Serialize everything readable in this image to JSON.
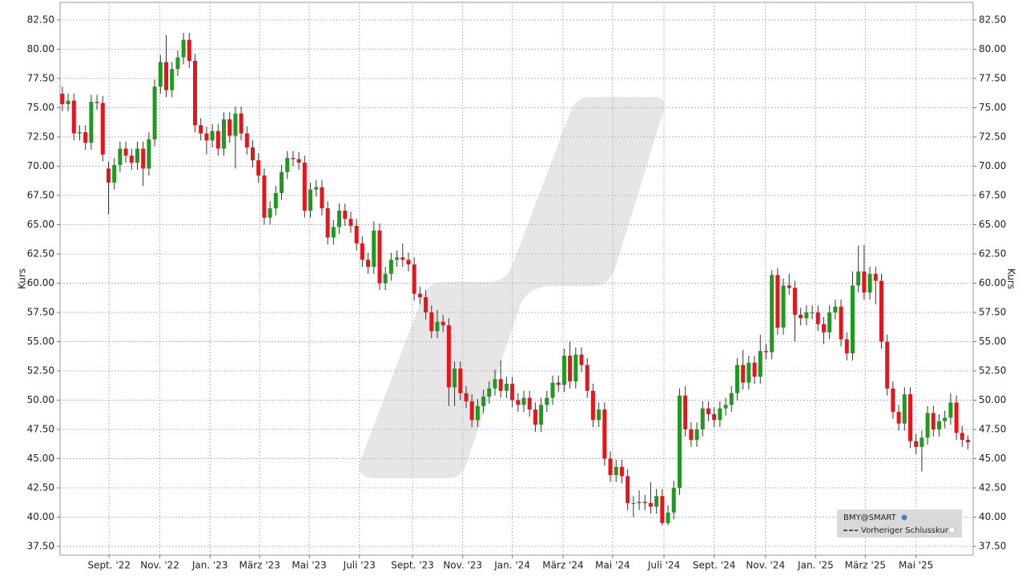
{
  "chart_data": {
    "type": "candlestick",
    "ylabel": "Kurs",
    "up_color": "#1e9b1e",
    "down_color": "#e8141c",
    "grid": true,
    "legend": {
      "corner": "bottom-right",
      "items": [
        "Vorheriger Schlusskurs"
      ]
    },
    "xlim": [
      -0.4,
      157.9
    ],
    "ylim": [
      36.75,
      84.0
    ],
    "xticks": [
      {
        "value": 8.1,
        "label": "Sept. '22"
      },
      {
        "value": 16.9,
        "label": "Nov. '22"
      },
      {
        "value": 25.6,
        "label": "Jan. '23"
      },
      {
        "value": 34.2,
        "label": "März '23"
      },
      {
        "value": 42.8,
        "label": "Mai '23"
      },
      {
        "value": 51.5,
        "label": "Juli '23"
      },
      {
        "value": 60.7,
        "label": "Sept. '23"
      },
      {
        "value": 69.4,
        "label": "Nov. '23"
      },
      {
        "value": 78.0,
        "label": "Jan. '24"
      },
      {
        "value": 86.8,
        "label": "März '24"
      },
      {
        "value": 95.4,
        "label": "Mai '24"
      },
      {
        "value": 104.3,
        "label": "Juli '24"
      },
      {
        "value": 113.0,
        "label": "Sept. '24"
      },
      {
        "value": 121.9,
        "label": "Nov. '24"
      },
      {
        "value": 130.6,
        "label": "Jan. '25"
      },
      {
        "value": 139.2,
        "label": "März '25"
      },
      {
        "value": 148.0,
        "label": "Mai '25"
      }
    ],
    "yticks": [
      {
        "value": 37.5,
        "label": "37.50"
      },
      {
        "value": 40,
        "label": "40.00"
      },
      {
        "value": 42.5,
        "label": "42.50"
      },
      {
        "value": 45,
        "label": "45.00"
      },
      {
        "value": 47.5,
        "label": "47.50"
      },
      {
        "value": 50,
        "label": "50.00"
      },
      {
        "value": 52.5,
        "label": "52.50"
      },
      {
        "value": 55,
        "label": "55.00"
      },
      {
        "value": 57.5,
        "label": "57.50"
      },
      {
        "value": 60,
        "label": "60.00"
      },
      {
        "value": 62.5,
        "label": "62.50"
      },
      {
        "value": 65,
        "label": "65.00"
      },
      {
        "value": 67.5,
        "label": "67.50"
      },
      {
        "value": 70,
        "label": "70.00"
      },
      {
        "value": 72.5,
        "label": "72.50"
      },
      {
        "value": 75,
        "label": "75.00"
      },
      {
        "value": 77.5,
        "label": "77.50"
      },
      {
        "value": 80,
        "label": "80.00"
      },
      {
        "value": 82.5,
        "label": "82.50"
      }
    ],
    "series": [
      {
        "name": "BMY@SMART",
        "open": [
          76.2,
          75.3,
          75.6,
          72.8,
          72.9,
          72.0,
          75.5,
          75.4,
          69.8,
          68.6,
          70.1,
          71.5,
          70.9,
          70.3,
          71.5,
          69.8,
          72.3,
          76.8,
          78.9,
          76.5,
          78.3,
          79.3,
          80.8,
          79.0,
          73.5,
          72.8,
          72.2,
          73.0,
          71.5,
          74.0,
          72.6,
          74.5,
          72.8,
          71.6,
          70.5,
          69.2,
          65.6,
          66.4,
          67.7,
          69.5,
          70.7,
          70.6,
          70.3,
          66.2,
          68.0,
          68.2,
          66.4,
          63.9,
          64.8,
          66.2,
          65.5,
          64.9,
          63.4,
          62.0,
          61.4,
          64.5,
          60.0,
          60.8,
          62.0,
          62.2,
          62.0,
          61.6,
          59.1,
          58.8,
          57.5,
          55.9,
          56.7,
          56.4,
          51.1,
          52.7,
          50.6,
          49.9,
          48.3,
          49.5,
          50.3,
          51.0,
          51.8,
          50.8,
          51.4,
          50.0,
          49.6,
          50.2,
          49.2,
          47.9,
          49.6,
          50.2,
          51.5,
          51.3,
          53.8,
          51.6,
          53.9,
          53.0,
          50.8,
          48.3,
          49.2,
          45.0,
          43.6,
          44.3,
          43.5,
          41.2,
          41.2,
          41.3,
          41.2,
          40.9,
          41.8,
          39.5,
          40.4,
          42.5,
          50.4,
          47.5,
          46.6,
          47.5,
          49.3,
          48.8,
          48.3,
          49.3,
          49.6,
          50.6,
          53.0,
          51.5,
          53.2,
          52.0,
          54.2,
          54.1,
          60.7,
          56.2,
          59.8,
          59.6,
          57.3,
          57.0,
          57.5,
          57.5,
          56.5,
          55.8,
          57.5,
          58.0,
          55.2,
          54.0,
          59.8,
          61.0,
          59.2,
          60.8,
          60.2,
          55.0,
          51.0,
          49.0,
          48.0,
          50.5,
          46.5,
          46.0,
          46.8,
          48.9,
          47.5,
          48.2,
          48.5,
          49.8,
          47.2,
          46.6
        ],
        "high": [
          76.8,
          76.2,
          76.2,
          73.5,
          73.5,
          76.1,
          76.1,
          76.0,
          70.4,
          70.7,
          72.1,
          72.1,
          71.5,
          72.1,
          72.1,
          72.9,
          77.4,
          79.5,
          81.2,
          78.9,
          79.9,
          81.4,
          81.4,
          79.6,
          74.1,
          73.4,
          73.6,
          73.6,
          74.6,
          74.6,
          75.1,
          75.1,
          73.4,
          72.2,
          71.1,
          69.8,
          67.0,
          68.3,
          70.1,
          71.3,
          71.3,
          71.2,
          70.9,
          68.6,
          68.8,
          68.8,
          67.0,
          65.4,
          66.8,
          66.8,
          66.1,
          65.5,
          64.0,
          62.6,
          65.3,
          65.1,
          61.4,
          62.6,
          62.8,
          63.4,
          62.6,
          62.2,
          59.7,
          59.4,
          58.1,
          57.7,
          57.3,
          57.0,
          53.3,
          53.3,
          51.2,
          50.5,
          50.1,
          50.9,
          51.6,
          52.6,
          53.4,
          52.0,
          52.0,
          50.6,
          50.8,
          50.8,
          49.8,
          50.2,
          50.8,
          52.1,
          52.1,
          54.4,
          55.0,
          54.5,
          54.5,
          53.6,
          51.4,
          49.8,
          49.8,
          45.6,
          44.9,
          44.9,
          44.1,
          41.8,
          42.3,
          41.9,
          43.0,
          42.4,
          42.4,
          41.0,
          43.1,
          51.0,
          51.2,
          48.1,
          48.1,
          49.9,
          49.9,
          49.4,
          49.9,
          50.2,
          51.2,
          53.6,
          54.3,
          53.8,
          53.8,
          55.6,
          54.8,
          61.1,
          61.3,
          60.4,
          60.8,
          60.2,
          57.9,
          58.1,
          58.1,
          58.1,
          57.1,
          58.1,
          58.6,
          58.6,
          55.8,
          61.0,
          63.2,
          63.3,
          61.4,
          61.4,
          60.8,
          55.6,
          51.6,
          49.6,
          51.1,
          51.1,
          47.1,
          47.4,
          49.5,
          49.5,
          48.8,
          49.1,
          50.6,
          50.4,
          47.8,
          47.0
        ],
        "low": [
          74.7,
          74.7,
          72.2,
          72.2,
          71.4,
          71.4,
          74.8,
          70.4,
          65.9,
          68.0,
          69.5,
          70.3,
          69.7,
          69.7,
          68.3,
          69.2,
          71.7,
          76.2,
          75.9,
          75.9,
          77.7,
          78.7,
          78.4,
          72.9,
          72.2,
          71.0,
          71.6,
          70.9,
          70.9,
          72.0,
          69.8,
          72.2,
          71.0,
          69.9,
          68.6,
          65.0,
          65.0,
          65.8,
          67.1,
          68.9,
          70.0,
          69.7,
          65.6,
          65.6,
          67.4,
          65.8,
          63.3,
          63.3,
          64.2,
          64.9,
          64.3,
          62.8,
          61.4,
          60.8,
          60.8,
          59.4,
          59.4,
          60.2,
          61.4,
          61.4,
          61.0,
          58.5,
          58.2,
          56.9,
          55.3,
          55.3,
          55.8,
          49.5,
          49.5,
          50.0,
          49.3,
          47.7,
          47.7,
          48.9,
          49.7,
          50.4,
          50.2,
          50.2,
          49.4,
          49.0,
          49.0,
          48.6,
          47.3,
          47.3,
          49.0,
          49.6,
          50.7,
          50.7,
          51.0,
          51.0,
          52.4,
          50.2,
          47.7,
          47.7,
          44.4,
          43.0,
          43.0,
          42.9,
          40.6,
          40.0,
          40.6,
          40.6,
          40.3,
          40.3,
          39.3,
          39.3,
          39.8,
          41.9,
          46.9,
          46.0,
          46.0,
          46.9,
          48.2,
          47.7,
          47.7,
          48.7,
          49.0,
          50.0,
          50.9,
          50.9,
          51.4,
          51.4,
          53.5,
          53.5,
          55.6,
          55.6,
          59.0,
          55.0,
          56.4,
          56.4,
          56.9,
          55.9,
          54.8,
          55.2,
          56.9,
          54.6,
          53.4,
          53.4,
          59.2,
          58.6,
          58.6,
          58.2,
          54.4,
          50.4,
          48.4,
          47.4,
          47.4,
          45.9,
          45.4,
          43.9,
          46.2,
          46.9,
          46.9,
          47.6,
          47.9,
          46.6,
          46.0,
          45.8
        ],
        "close": [
          75.3,
          75.6,
          72.8,
          72.9,
          72.0,
          75.5,
          75.4,
          71.0,
          68.6,
          70.1,
          71.5,
          70.9,
          70.3,
          71.5,
          69.8,
          72.3,
          76.8,
          78.9,
          76.5,
          78.3,
          79.3,
          80.8,
          79.0,
          73.5,
          72.8,
          72.2,
          73.0,
          71.5,
          74.0,
          72.6,
          74.5,
          72.8,
          71.6,
          70.5,
          69.2,
          65.6,
          66.4,
          67.7,
          69.5,
          70.7,
          70.6,
          70.3,
          66.2,
          68.0,
          68.2,
          66.4,
          63.9,
          64.8,
          66.2,
          65.5,
          64.9,
          63.4,
          62.0,
          61.4,
          64.5,
          60.0,
          60.8,
          62.0,
          62.2,
          62.0,
          61.6,
          59.1,
          58.8,
          57.5,
          55.9,
          56.7,
          56.4,
          51.1,
          52.7,
          50.6,
          49.9,
          48.3,
          49.5,
          50.3,
          51.0,
          51.8,
          50.8,
          51.4,
          50.0,
          49.6,
          50.2,
          49.2,
          47.9,
          49.6,
          50.2,
          51.5,
          51.3,
          53.8,
          51.6,
          53.9,
          53.0,
          50.8,
          48.3,
          49.2,
          45.0,
          43.6,
          44.3,
          43.5,
          41.2,
          41.2,
          41.3,
          41.2,
          40.9,
          41.8,
          39.5,
          40.4,
          42.5,
          50.4,
          47.5,
          46.6,
          47.5,
          49.3,
          48.8,
          48.3,
          49.3,
          49.6,
          50.6,
          53.0,
          51.5,
          53.2,
          52.0,
          54.2,
          54.1,
          60.7,
          56.2,
          59.8,
          59.6,
          57.3,
          57.0,
          57.5,
          57.5,
          56.5,
          55.8,
          57.5,
          58.0,
          55.2,
          54.0,
          59.8,
          61.0,
          59.2,
          60.8,
          60.2,
          55.0,
          51.0,
          49.0,
          48.0,
          50.5,
          46.5,
          46.0,
          46.8,
          48.9,
          47.5,
          48.2,
          48.5,
          49.8,
          47.2,
          46.6,
          46.4
        ]
      }
    ]
  }
}
